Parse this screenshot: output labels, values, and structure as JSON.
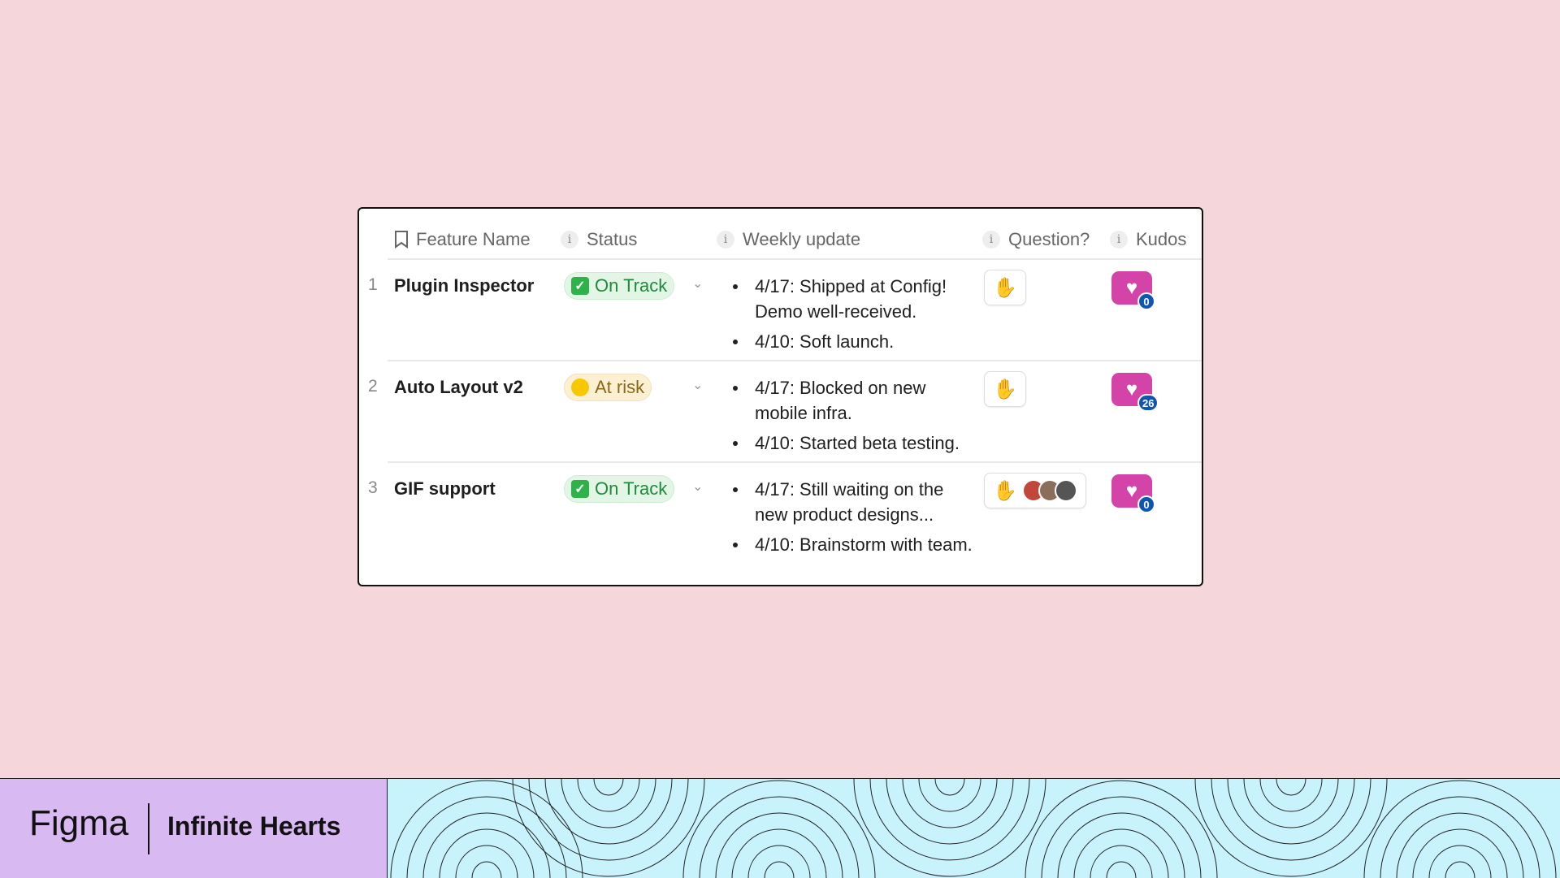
{
  "table": {
    "headers": [
      {
        "label": "Feature Name",
        "icon": "bookmark-icon"
      },
      {
        "label": "Status",
        "icon": "info-icon"
      },
      {
        "label": "Weekly update",
        "icon": "info-icon"
      },
      {
        "label": "Question?",
        "icon": "info-icon"
      },
      {
        "label": "Kudos",
        "icon": "info-icon"
      }
    ],
    "rows": [
      {
        "num": "1",
        "name": "Plugin Inspector",
        "status": "On Track",
        "updates": [
          "4/17: Shipped at Config! Demo well-received.",
          "4/10: Soft launch."
        ],
        "kudos": "0"
      },
      {
        "num": "2",
        "name": "Auto Layout v2",
        "status": "At risk",
        "updates": [
          "4/17: Blocked on new mobile infra.",
          "4/10: Started beta testing."
        ],
        "kudos": "26"
      },
      {
        "num": "3",
        "name": "GIF support",
        "status": "On Track",
        "updates": [
          "4/17: Still waiting on the new product designs...",
          "4/10: Brainstorm with team."
        ],
        "kudos": "0"
      }
    ]
  },
  "colors": {
    "on_track_bg": "#e3f6e6",
    "on_track_text": "#1f8a3b",
    "at_risk_bg": "#fdf0d2",
    "at_risk_text": "#8a6a1a",
    "kudos": "#d443a8",
    "badge": "#1056b0"
  },
  "footer": {
    "logo": "Figma",
    "title": "Infinite Hearts"
  }
}
